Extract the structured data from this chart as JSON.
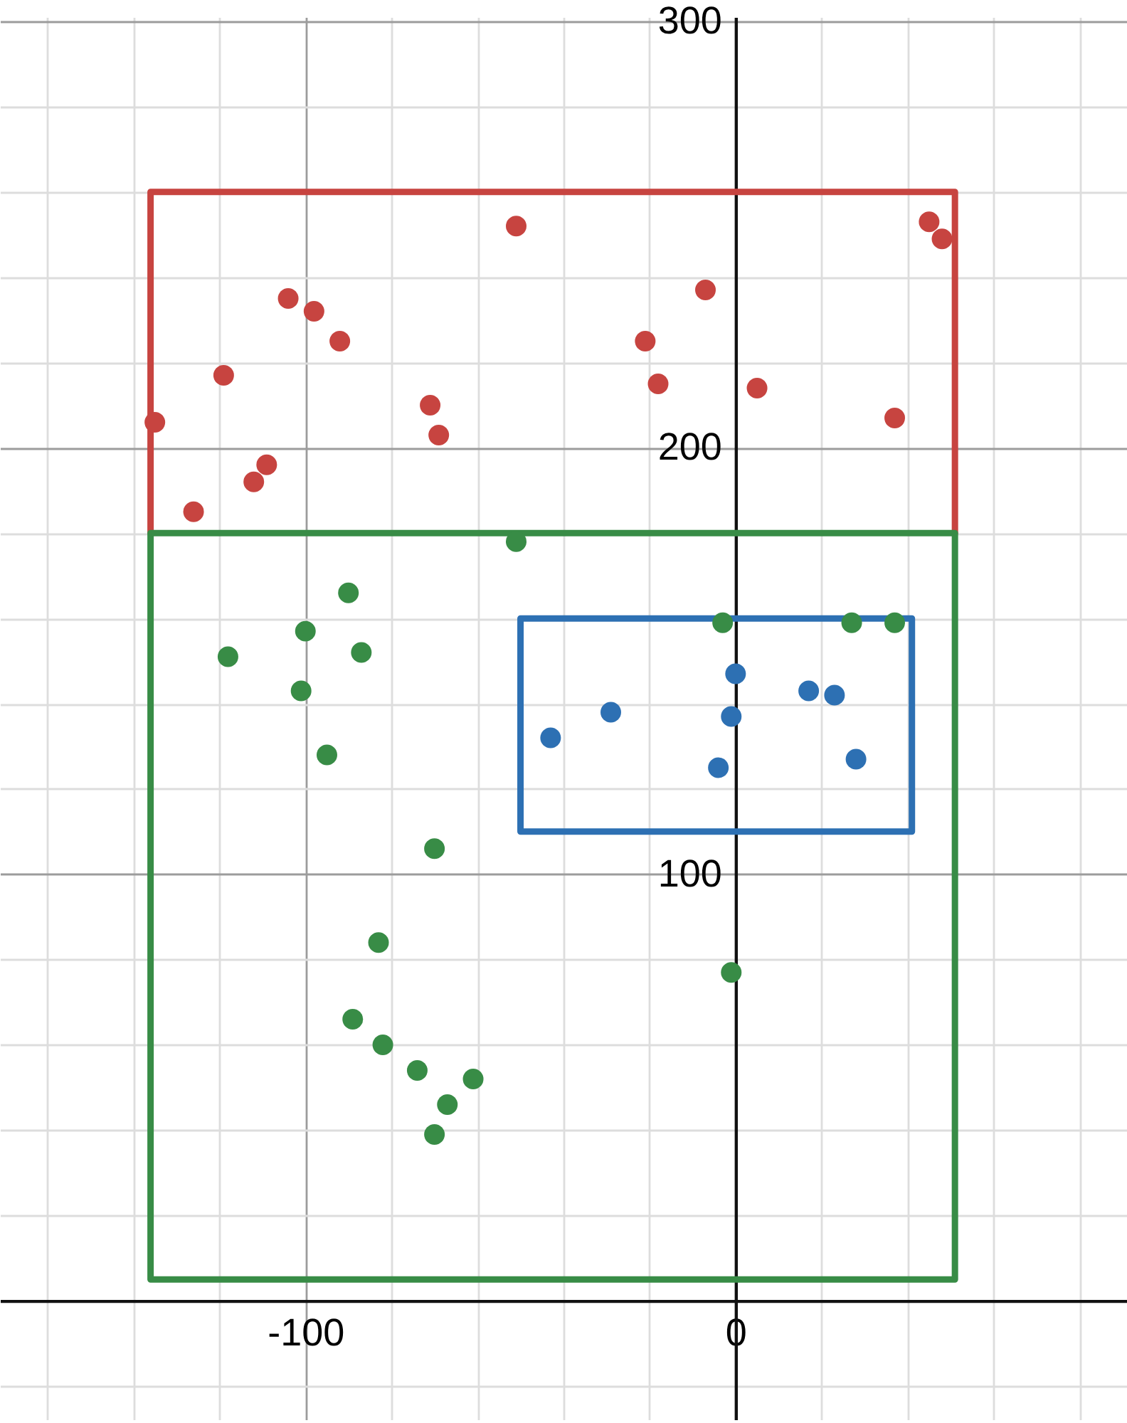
{
  "chart_data": {
    "type": "scatter",
    "marker": "circle",
    "grid": true,
    "xlim": [
      -171,
      91
    ],
    "ylim": [
      -28,
      301
    ],
    "xticks": [
      {
        "value": -160,
        "label": null
      },
      {
        "value": -140,
        "label": null
      },
      {
        "value": -120,
        "label": null
      },
      -100,
      {
        "value": -80,
        "label": null
      },
      {
        "value": -60,
        "label": null
      },
      {
        "value": -40,
        "label": null
      },
      {
        "value": -20,
        "label": null
      },
      0,
      {
        "value": 20,
        "label": null
      },
      {
        "value": 40,
        "label": null
      },
      {
        "value": 60,
        "label": null
      },
      {
        "value": 80,
        "label": null
      }
    ],
    "yticks": [
      {
        "value": -20,
        "label": null
      },
      {
        "value": 0,
        "label": null
      },
      {
        "value": 20,
        "label": null
      },
      {
        "value": 40,
        "label": null
      },
      {
        "value": 60,
        "label": null
      },
      {
        "value": 80,
        "label": null
      },
      100,
      {
        "value": 120,
        "label": null
      },
      {
        "value": 140,
        "label": null
      },
      {
        "value": 160,
        "label": null
      },
      {
        "value": 180,
        "label": null
      },
      200,
      {
        "value": 220,
        "label": null
      },
      {
        "value": 240,
        "label": null
      },
      {
        "value": 260,
        "label": null
      },
      {
        "value": 280,
        "label": null
      },
      300
    ],
    "series": [
      {
        "type": "line",
        "marker": "none",
        "color": "#c74440",
        "x": [
          -136,
          -136,
          51,
          51
        ],
        "values": [
          180,
          260,
          260,
          180
        ]
      },
      {
        "type": "line",
        "marker": "none",
        "color": "#388c46",
        "x": [
          -136,
          51,
          51,
          -136,
          -136,
          51
        ],
        "values": [
          180,
          180,
          5,
          5,
          180,
          180
        ]
      },
      {
        "type": "line",
        "marker": "none",
        "color": "#2d70b3",
        "x": [
          -50,
          41,
          41,
          -50,
          -50,
          41
        ],
        "values": [
          160,
          160,
          110,
          110,
          160,
          160
        ]
      },
      {
        "color": "#c74440",
        "x": [
          -135,
          -126,
          -119,
          -112,
          -109,
          -104,
          -98,
          -92,
          -71,
          -69,
          -51,
          -21,
          -18,
          -7,
          5,
          37,
          45,
          48
        ],
        "values": [
          206,
          185,
          217,
          192,
          196,
          235,
          232,
          225,
          210,
          203,
          252,
          225,
          215,
          237,
          214,
          207,
          253,
          249
        ]
      },
      {
        "color": "#388c46",
        "x": [
          -51,
          -90,
          -100,
          -118,
          -87,
          -101,
          -95,
          -70,
          -83,
          -89,
          -82,
          -74,
          -61,
          -67,
          -70,
          -1,
          -3,
          27,
          37
        ],
        "values": [
          178,
          166,
          157,
          151,
          152,
          143,
          128,
          106,
          84,
          66,
          60,
          54,
          52,
          46,
          39,
          77,
          159,
          159,
          159
        ]
      },
      {
        "color": "#2d70b3",
        "x": [
          0,
          17,
          23,
          -29,
          -1,
          -43,
          -4,
          28
        ],
        "values": [
          147,
          143,
          142,
          138,
          137,
          132,
          125,
          127
        ]
      }
    ]
  }
}
